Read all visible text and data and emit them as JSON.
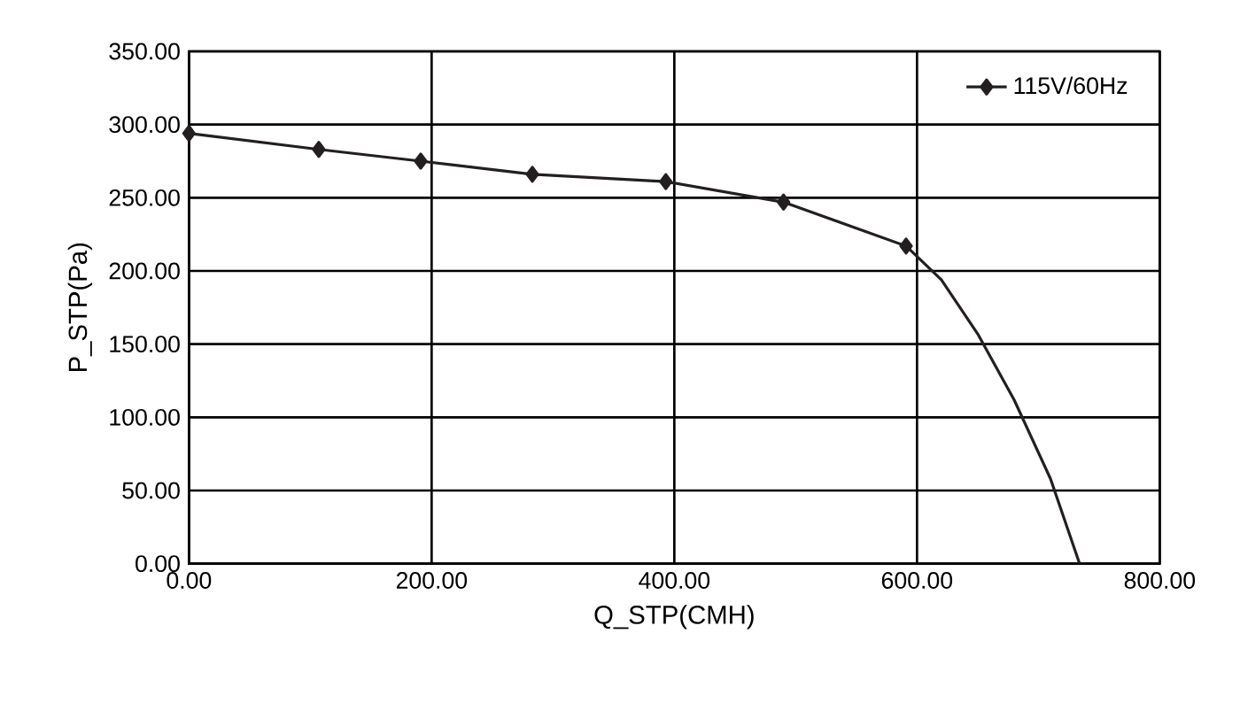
{
  "chart_data": {
    "type": "line",
    "xlabel": "Q_STP(CMH)",
    "ylabel": "P_STP(Pa)",
    "xlim": [
      0,
      800
    ],
    "ylim": [
      0,
      350
    ],
    "xticks": [
      {
        "value": 0,
        "label": "0.00"
      },
      {
        "value": 200,
        "label": "200.00"
      },
      {
        "value": 400,
        "label": "400.00"
      },
      {
        "value": 600,
        "label": "600.00"
      },
      {
        "value": 800,
        "label": "800.00"
      }
    ],
    "yticks": [
      {
        "value": 0,
        "label": "0.00"
      },
      {
        "value": 50,
        "label": "50.00"
      },
      {
        "value": 100,
        "label": "100.00"
      },
      {
        "value": 150,
        "label": "150.00"
      },
      {
        "value": 200,
        "label": "200.00"
      },
      {
        "value": 250,
        "label": "250.00"
      },
      {
        "value": 300,
        "label": "300.00"
      },
      {
        "value": 350,
        "label": "350.00"
      }
    ],
    "grid": true,
    "legend": "top right",
    "line_style": "solid",
    "series": [
      {
        "name": "115V/60Hz",
        "color": "#231f20",
        "marker": "diamond",
        "x": [
          0,
          107,
          191,
          283,
          393,
          490,
          591
        ],
        "values": [
          294,
          283,
          275,
          266,
          261,
          247,
          217
        ]
      },
      {
        "color": "#231f20",
        "marker": "none",
        "x": [
          591,
          620,
          650,
          680,
          710,
          734
        ],
        "values": [
          217,
          194,
          157,
          112,
          58,
          0
        ]
      }
    ]
  }
}
